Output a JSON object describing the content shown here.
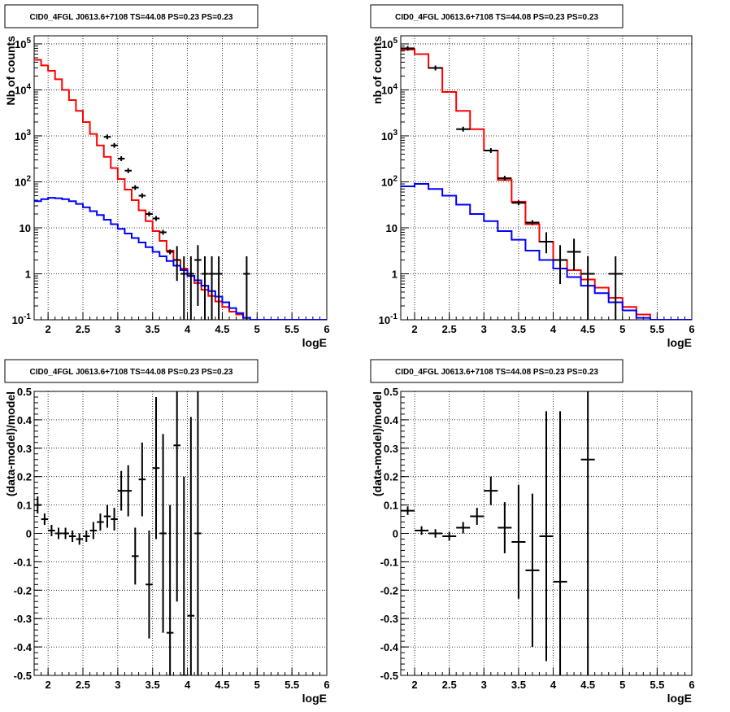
{
  "chart_data": [
    {
      "type": "line",
      "title": "CID0_4FGL J0613.6+7108 TS=44.08 PS=0.23 PS=0.23",
      "xlabel": "logE",
      "ylabel": "Nb of counts",
      "yscale": "log",
      "xlim": [
        1.8,
        6.0
      ],
      "ylim": [
        0.1,
        150000
      ],
      "grid": true,
      "x_ticks": [
        "2",
        "2.5",
        "3",
        "3.5",
        "4",
        "4.5",
        "5",
        "5.5",
        "6"
      ],
      "y_ticks": [
        "10^-1",
        "1",
        "10",
        "10^2",
        "10^3",
        "10^4",
        "10^5"
      ],
      "series": [
        {
          "color": "#ff0000",
          "bin_width": 0.1,
          "x": [
            1.8,
            1.9,
            2.0,
            2.1,
            2.2,
            2.3,
            2.4,
            2.5,
            2.6,
            2.7,
            2.8,
            2.9,
            3.0,
            3.1,
            3.2,
            3.3,
            3.4,
            3.5,
            3.6,
            3.7,
            3.8,
            3.9,
            4.0,
            4.1,
            4.2,
            4.3,
            4.4,
            4.5,
            4.6,
            4.7,
            4.8,
            4.9,
            5.0
          ],
          "values": [
            45000,
            34000,
            26000,
            17000,
            10000,
            6000,
            3500,
            2000,
            1100,
            620,
            350,
            200,
            115,
            68,
            40,
            24,
            14,
            8.5,
            5.2,
            3.2,
            2.0,
            1.3,
            0.9,
            0.63,
            0.45,
            0.33,
            0.25,
            0.19,
            0.15,
            0.13,
            0.11,
            0.1,
            0.1
          ]
        },
        {
          "color": "#0000ff",
          "bin_width": 0.1,
          "x": [
            1.8,
            1.9,
            2.0,
            2.1,
            2.2,
            2.3,
            2.4,
            2.5,
            2.6,
            2.7,
            2.8,
            2.9,
            3.0,
            3.1,
            3.2,
            3.3,
            3.4,
            3.5,
            3.6,
            3.7,
            3.8,
            3.9,
            4.0,
            4.1,
            4.2,
            4.3,
            4.4,
            4.5,
            4.6,
            4.7,
            4.8,
            4.9,
            5.0
          ],
          "values": [
            38,
            42,
            45,
            44,
            42,
            38,
            33,
            28,
            23,
            19,
            15,
            12,
            9.5,
            7.5,
            6.0,
            4.8,
            3.8,
            3.0,
            2.4,
            1.9,
            1.5,
            1.2,
            0.9,
            0.72,
            0.55,
            0.42,
            0.32,
            0.24,
            0.18,
            0.14,
            0.11,
            0.1,
            0.1
          ]
        },
        {
          "type": "points",
          "color": "#000000",
          "x": [
            2.85,
            2.95,
            3.05,
            3.15,
            3.25,
            3.35,
            3.45,
            3.55,
            3.65,
            3.75,
            3.85,
            3.95,
            4.05,
            4.15,
            4.25,
            4.35,
            4.45,
            4.85
          ],
          "values": [
            950,
            620,
            320,
            175,
            75,
            50,
            20,
            16,
            8,
            3,
            2,
            1,
            1,
            2,
            1,
            1,
            1,
            1
          ],
          "err_low": [
            0.0,
            0.0,
            0.0,
            0.0,
            0.0,
            0.0,
            0.0,
            0.0,
            0.0,
            0.0,
            1.3,
            0.9,
            0.9,
            1.8,
            0.9,
            0.9,
            0.9,
            0.9
          ],
          "err_high": [
            0.0,
            0.0,
            0.0,
            0.0,
            0.0,
            0.0,
            0.0,
            0.0,
            0.0,
            0.0,
            2.0,
            1.4,
            1.4,
            2.2,
            1.4,
            1.4,
            1.4,
            1.4
          ],
          "xerr": 0.05
        }
      ]
    },
    {
      "type": "line",
      "title": "CID0_4FGL J0613.6+7108 TS=44.08 PS=0.23 PS=0.23",
      "xlabel": "logE",
      "ylabel": "nb of counts",
      "yscale": "log",
      "xlim": [
        1.8,
        6.0
      ],
      "ylim": [
        0.1,
        150000
      ],
      "grid": true,
      "x_ticks": [
        "2",
        "2.5",
        "3",
        "3.5",
        "4",
        "4.5",
        "5",
        "5.5",
        "6"
      ],
      "y_ticks": [
        "10^-1",
        "1",
        "10",
        "10^2",
        "10^3",
        "10^4",
        "10^5"
      ],
      "series": [
        {
          "color": "#ff0000",
          "bin_width": 0.2,
          "x": [
            1.8,
            2.0,
            2.2,
            2.4,
            2.6,
            2.8,
            3.0,
            3.2,
            3.4,
            3.6,
            3.8,
            4.0,
            4.2,
            4.4,
            4.6,
            4.8,
            5.0,
            5.2,
            5.4
          ],
          "values": [
            75000,
            60000,
            30000,
            9000,
            3500,
            1400,
            480,
            110,
            37,
            12,
            5,
            2,
            1.2,
            0.75,
            0.5,
            0.3,
            0.19,
            0.13,
            0.1
          ]
        },
        {
          "color": "#0000ff",
          "bin_width": 0.2,
          "x": [
            1.8,
            2.0,
            2.2,
            2.4,
            2.6,
            2.8,
            3.0,
            3.2,
            3.4,
            3.6,
            3.8,
            4.0,
            4.2,
            4.4,
            4.6,
            4.8,
            5.0,
            5.2,
            5.4
          ],
          "values": [
            80,
            90,
            70,
            50,
            32,
            20,
            14,
            8.5,
            5.5,
            3.2,
            2.0,
            1.3,
            0.85,
            0.55,
            0.38,
            0.24,
            0.16,
            0.11,
            0.1
          ]
        },
        {
          "type": "points",
          "color": "#000000",
          "x": [
            1.9,
            2.3,
            2.7,
            3.1,
            3.3,
            3.5,
            3.7,
            3.9,
            4.1,
            4.3,
            4.5,
            4.9
          ],
          "values": [
            80000,
            30000,
            1400,
            480,
            120,
            35,
            13,
            5,
            2,
            3,
            1,
            1
          ],
          "err_low": [
            0,
            0,
            0,
            0,
            0,
            0,
            0,
            2.2,
            1.4,
            1.8,
            0.9,
            0.9
          ],
          "err_high": [
            0,
            0,
            0,
            0,
            0,
            0,
            0,
            3.0,
            2.2,
            2.8,
            1.4,
            1.4
          ],
          "xerr": 0.1
        }
      ]
    },
    {
      "type": "scatter",
      "title": "CID0_4FGL J0613.6+7108 TS=44.08 PS=0.23 PS=0.23",
      "xlabel": "logE",
      "ylabel": "(data-model)/model",
      "xlim": [
        1.8,
        6.0
      ],
      "ylim": [
        -0.5,
        0.5
      ],
      "grid": true,
      "x_ticks": [
        "2",
        "2.5",
        "3",
        "3.5",
        "4",
        "4.5",
        "5",
        "5.5",
        "6"
      ],
      "y_ticks": [
        "-0.5",
        "-0.4",
        "-0.3",
        "-0.2",
        "-0.1",
        "0",
        "0.1",
        "0.2",
        "0.3",
        "0.4",
        "0.5"
      ],
      "series": [
        {
          "color": "#000000",
          "xerr": 0.05,
          "x": [
            1.85,
            1.95,
            2.05,
            2.15,
            2.25,
            2.35,
            2.45,
            2.55,
            2.65,
            2.75,
            2.85,
            2.95,
            3.05,
            3.15,
            3.25,
            3.35,
            3.45,
            3.55,
            3.65,
            3.75,
            3.85,
            3.95,
            4.05,
            4.15
          ],
          "y": [
            0.1,
            0.05,
            0.01,
            0.0,
            0.0,
            -0.01,
            -0.02,
            -0.01,
            0.01,
            0.04,
            0.06,
            0.05,
            0.15,
            0.15,
            -0.08,
            0.19,
            -0.18,
            0.23,
            0.0,
            -0.35,
            0.31,
            -0.5,
            -0.29,
            0.0
          ],
          "err": [
            0.03,
            0.02,
            0.02,
            0.02,
            0.02,
            0.02,
            0.02,
            0.02,
            0.03,
            0.03,
            0.04,
            0.04,
            0.07,
            0.09,
            0.1,
            0.13,
            0.19,
            0.25,
            0.35,
            0.45,
            0.55,
            0.7,
            0.7,
            0.7
          ]
        }
      ]
    },
    {
      "type": "scatter",
      "title": "CID0_4FGL J0613.6+7108 TS=44.08 PS=0.23 PS=0.23",
      "xlabel": "logE",
      "ylabel": "(data-model)/model",
      "xlim": [
        1.8,
        6.0
      ],
      "ylim": [
        -0.5,
        0.5
      ],
      "grid": true,
      "x_ticks": [
        "2",
        "2.5",
        "3",
        "3.5",
        "4",
        "4.5",
        "5",
        "5.5",
        "6"
      ],
      "y_ticks": [
        "-0.5",
        "-0.4",
        "-0.3",
        "-0.2",
        "-0.1",
        "0",
        "0.1",
        "0.2",
        "0.3",
        "0.4",
        "0.5"
      ],
      "series": [
        {
          "color": "#000000",
          "xerr": 0.1,
          "x": [
            1.9,
            2.1,
            2.3,
            2.5,
            2.7,
            2.9,
            3.1,
            3.3,
            3.5,
            3.7,
            3.9,
            4.1,
            4.5
          ],
          "y": [
            0.08,
            0.01,
            0.0,
            -0.01,
            0.02,
            0.06,
            0.15,
            0.02,
            -0.03,
            -0.13,
            -0.01,
            -0.17,
            0.26
          ],
          "err": [
            0.015,
            0.015,
            0.015,
            0.015,
            0.02,
            0.03,
            0.05,
            0.09,
            0.2,
            0.27,
            0.44,
            0.6,
            0.8
          ]
        }
      ]
    }
  ]
}
